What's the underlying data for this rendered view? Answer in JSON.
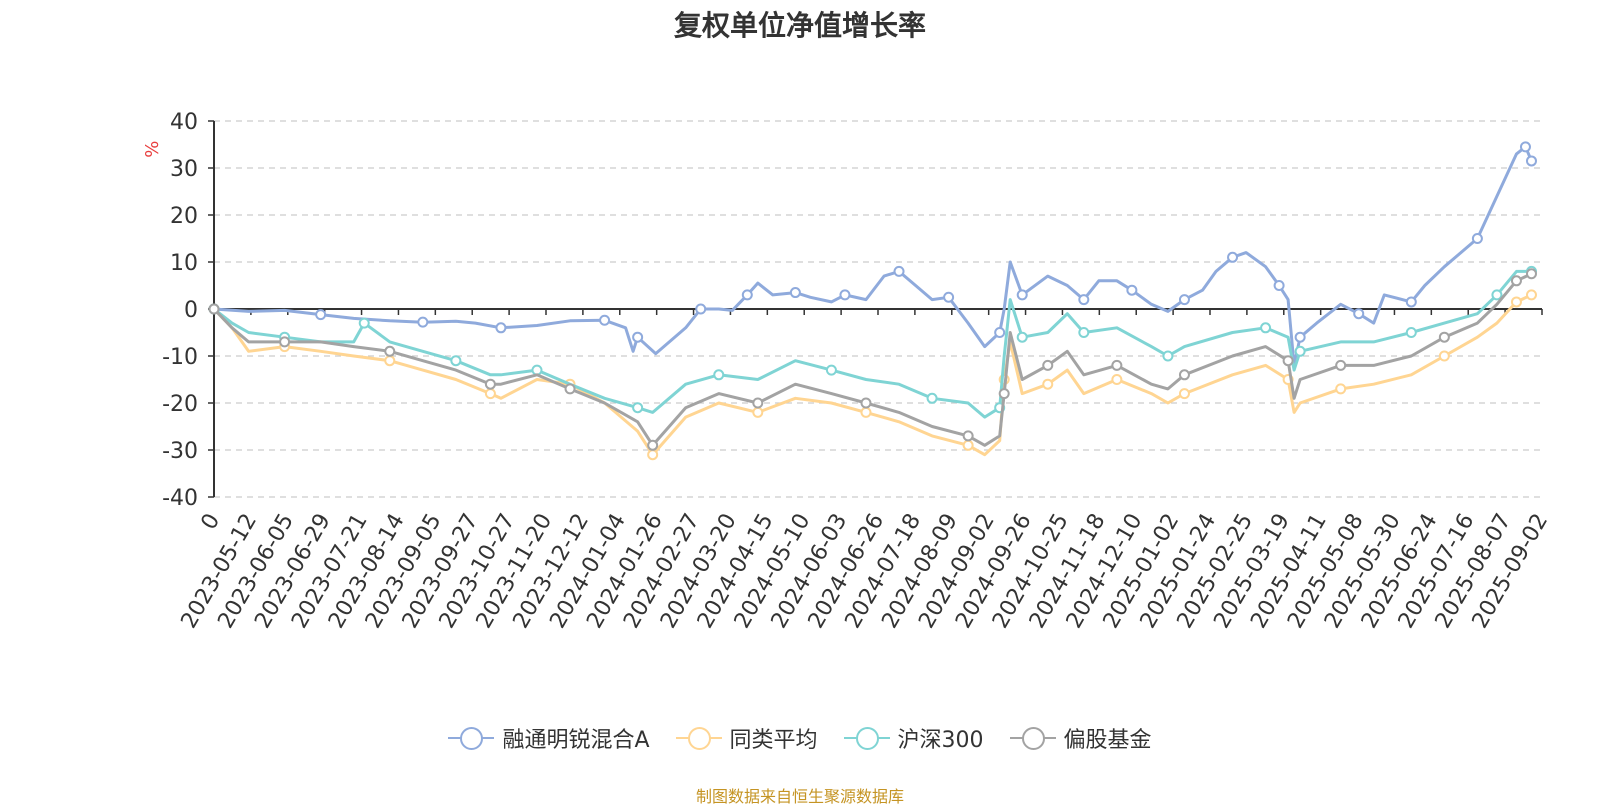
{
  "source_note": "制图数据来自恒生聚源数据库",
  "chart_data": {
    "type": "line",
    "title": "复权单位净值增长率",
    "ylabel": "%",
    "ylim": [
      -40,
      40
    ],
    "yticks": [
      -40,
      -30,
      -20,
      -10,
      0,
      10,
      20,
      30,
      40
    ],
    "x_range": [
      "2023-04-19",
      "2025-09-19"
    ],
    "xtick_labels": [
      "0",
      "2023-05-12",
      "2023-06-05",
      "2023-06-29",
      "2023-07-21",
      "2023-08-14",
      "2023-09-05",
      "2023-09-27",
      "2023-10-27",
      "2023-11-20",
      "2023-12-12",
      "2024-01-04",
      "2024-01-26",
      "2024-02-27",
      "2024-03-20",
      "2024-04-15",
      "2024-05-10",
      "2024-06-03",
      "2024-06-26",
      "2024-07-18",
      "2024-08-09",
      "2024-09-02",
      "2024-09-26",
      "2024-10-25",
      "2024-11-18",
      "2024-12-10",
      "2025-01-02",
      "2025-01-24",
      "2025-02-25",
      "2025-03-19",
      "2025-04-11",
      "2025-05-08",
      "2025-05-30",
      "2025-06-24",
      "2025-07-16",
      "2025-08-07",
      "2025-09-02"
    ],
    "grid": true,
    "legend_position": "bottom",
    "series": [
      {
        "name": "融通明锐混合A",
        "color": "#8faadc",
        "points": [
          [
            "2023-04-19",
            0
          ],
          [
            "2023-05-12",
            -0.5
          ],
          [
            "2023-06-05",
            -0.3
          ],
          [
            "2023-06-29",
            -1.2
          ],
          [
            "2023-07-21",
            -2
          ],
          [
            "2023-08-14",
            -2.5
          ],
          [
            "2023-09-05",
            -2.8
          ],
          [
            "2023-09-27",
            -2.6
          ],
          [
            "2023-10-10",
            -3
          ],
          [
            "2023-10-27",
            -4
          ],
          [
            "2023-11-20",
            -3.5
          ],
          [
            "2023-12-12",
            -2.5
          ],
          [
            "2024-01-04",
            -2.4
          ],
          [
            "2024-01-18",
            -4
          ],
          [
            "2024-01-23",
            -9
          ],
          [
            "2024-01-26",
            -6
          ],
          [
            "2024-02-07",
            -9.5
          ],
          [
            "2024-02-27",
            -4
          ],
          [
            "2024-03-08",
            0
          ],
          [
            "2024-03-20",
            0
          ],
          [
            "2024-03-29",
            -0.3
          ],
          [
            "2024-04-08",
            3
          ],
          [
            "2024-04-15",
            5.5
          ],
          [
            "2024-04-25",
            3
          ],
          [
            "2024-05-10",
            3.5
          ],
          [
            "2024-05-20",
            2.5
          ],
          [
            "2024-06-03",
            1.5
          ],
          [
            "2024-06-12",
            3
          ],
          [
            "2024-06-26",
            2
          ],
          [
            "2024-07-08",
            7
          ],
          [
            "2024-07-18",
            8
          ],
          [
            "2024-07-29",
            5
          ],
          [
            "2024-08-09",
            2
          ],
          [
            "2024-08-20",
            2.5
          ],
          [
            "2024-09-02",
            -3
          ],
          [
            "2024-09-13",
            -8
          ],
          [
            "2024-09-23",
            -5
          ],
          [
            "2024-09-26",
            0
          ],
          [
            "2024-09-30",
            10
          ],
          [
            "2024-10-08",
            3
          ],
          [
            "2024-10-25",
            7
          ],
          [
            "2024-11-07",
            5
          ],
          [
            "2024-11-18",
            2
          ],
          [
            "2024-11-28",
            6
          ],
          [
            "2024-12-10",
            6
          ],
          [
            "2024-12-20",
            4
          ],
          [
            "2025-01-02",
            1
          ],
          [
            "2025-01-13",
            -0.5
          ],
          [
            "2025-01-24",
            2
          ],
          [
            "2025-02-05",
            4
          ],
          [
            "2025-02-14",
            8
          ],
          [
            "2025-02-25",
            11
          ],
          [
            "2025-03-06",
            12
          ],
          [
            "2025-03-19",
            9
          ],
          [
            "2025-03-28",
            5
          ],
          [
            "2025-04-03",
            2
          ],
          [
            "2025-04-07",
            -12
          ],
          [
            "2025-04-11",
            -6
          ],
          [
            "2025-04-22",
            -3
          ],
          [
            "2025-05-08",
            1
          ],
          [
            "2025-05-20",
            -1
          ],
          [
            "2025-05-30",
            -3
          ],
          [
            "2025-06-06",
            3
          ],
          [
            "2025-06-24",
            1.5
          ],
          [
            "2025-07-03",
            5
          ],
          [
            "2025-07-16",
            9
          ],
          [
            "2025-08-07",
            15
          ],
          [
            "2025-08-20",
            24
          ],
          [
            "2025-09-02",
            33
          ],
          [
            "2025-09-08",
            34.5
          ],
          [
            "2025-09-12",
            31.5
          ]
        ]
      },
      {
        "name": "同类平均",
        "color": "#ffd592",
        "points": [
          [
            "2023-04-19",
            0
          ],
          [
            "2023-05-01",
            -4
          ],
          [
            "2023-05-12",
            -9
          ],
          [
            "2023-06-05",
            -8
          ],
          [
            "2023-06-29",
            -9
          ],
          [
            "2023-07-21",
            -10
          ],
          [
            "2023-08-14",
            -11
          ],
          [
            "2023-09-05",
            -13
          ],
          [
            "2023-09-27",
            -15
          ],
          [
            "2023-10-20",
            -18
          ],
          [
            "2023-10-27",
            -19
          ],
          [
            "2023-11-20",
            -15
          ],
          [
            "2023-12-12",
            -16
          ],
          [
            "2024-01-04",
            -20
          ],
          [
            "2024-01-26",
            -26
          ],
          [
            "2024-02-05",
            -31
          ],
          [
            "2024-02-27",
            -23
          ],
          [
            "2024-03-20",
            -20
          ],
          [
            "2024-04-15",
            -22
          ],
          [
            "2024-05-10",
            -19
          ],
          [
            "2024-06-03",
            -20
          ],
          [
            "2024-06-26",
            -22
          ],
          [
            "2024-07-18",
            -24
          ],
          [
            "2024-08-09",
            -27
          ],
          [
            "2024-09-02",
            -29
          ],
          [
            "2024-09-13",
            -31
          ],
          [
            "2024-09-23",
            -28
          ],
          [
            "2024-09-26",
            -15
          ],
          [
            "2024-09-30",
            -7
          ],
          [
            "2024-10-08",
            -18
          ],
          [
            "2024-10-25",
            -16
          ],
          [
            "2024-11-07",
            -13
          ],
          [
            "2024-11-18",
            -18
          ],
          [
            "2024-12-10",
            -15
          ],
          [
            "2025-01-02",
            -18
          ],
          [
            "2025-01-13",
            -20
          ],
          [
            "2025-01-24",
            -18
          ],
          [
            "2025-02-25",
            -14
          ],
          [
            "2025-03-19",
            -12
          ],
          [
            "2025-04-03",
            -15
          ],
          [
            "2025-04-07",
            -22
          ],
          [
            "2025-04-11",
            -20
          ],
          [
            "2025-05-08",
            -17
          ],
          [
            "2025-05-30",
            -16
          ],
          [
            "2025-06-24",
            -14
          ],
          [
            "2025-07-16",
            -10
          ],
          [
            "2025-08-07",
            -6
          ],
          [
            "2025-08-20",
            -3
          ],
          [
            "2025-09-02",
            1.5
          ],
          [
            "2025-09-12",
            3
          ]
        ]
      },
      {
        "name": "沪深300",
        "color": "#7fd4d4",
        "points": [
          [
            "2023-04-19",
            0
          ],
          [
            "2023-05-01",
            -3
          ],
          [
            "2023-05-12",
            -5
          ],
          [
            "2023-06-05",
            -6
          ],
          [
            "2023-06-29",
            -7
          ],
          [
            "2023-07-21",
            -7
          ],
          [
            "2023-07-28",
            -3
          ],
          [
            "2023-08-14",
            -7
          ],
          [
            "2023-09-05",
            -9
          ],
          [
            "2023-09-27",
            -11
          ],
          [
            "2023-10-20",
            -14
          ],
          [
            "2023-10-27",
            -14
          ],
          [
            "2023-11-20",
            -13
          ],
          [
            "2023-12-12",
            -16
          ],
          [
            "2024-01-04",
            -19
          ],
          [
            "2024-01-26",
            -21
          ],
          [
            "2024-02-05",
            -22
          ],
          [
            "2024-02-27",
            -16
          ],
          [
            "2024-03-20",
            -14
          ],
          [
            "2024-04-15",
            -15
          ],
          [
            "2024-05-10",
            -11
          ],
          [
            "2024-06-03",
            -13
          ],
          [
            "2024-06-26",
            -15
          ],
          [
            "2024-07-18",
            -16
          ],
          [
            "2024-08-09",
            -19
          ],
          [
            "2024-09-02",
            -20
          ],
          [
            "2024-09-13",
            -23
          ],
          [
            "2024-09-23",
            -21
          ],
          [
            "2024-09-26",
            -10
          ],
          [
            "2024-09-30",
            2
          ],
          [
            "2024-10-08",
            -6
          ],
          [
            "2024-10-25",
            -5
          ],
          [
            "2024-11-07",
            -1
          ],
          [
            "2024-11-18",
            -5
          ],
          [
            "2024-12-10",
            -4
          ],
          [
            "2025-01-02",
            -8
          ],
          [
            "2025-01-13",
            -10
          ],
          [
            "2025-01-24",
            -8
          ],
          [
            "2025-02-25",
            -5
          ],
          [
            "2025-03-19",
            -4
          ],
          [
            "2025-04-03",
            -6
          ],
          [
            "2025-04-07",
            -13
          ],
          [
            "2025-04-11",
            -9
          ],
          [
            "2025-05-08",
            -7
          ],
          [
            "2025-05-30",
            -7
          ],
          [
            "2025-06-24",
            -5
          ],
          [
            "2025-07-16",
            -3
          ],
          [
            "2025-08-07",
            -1
          ],
          [
            "2025-08-20",
            3
          ],
          [
            "2025-09-02",
            8
          ],
          [
            "2025-09-12",
            8
          ]
        ]
      },
      {
        "name": "偏股基金",
        "color": "#a3a3a3",
        "points": [
          [
            "2023-04-19",
            0
          ],
          [
            "2023-05-01",
            -4
          ],
          [
            "2023-05-12",
            -7
          ],
          [
            "2023-06-05",
            -7
          ],
          [
            "2023-06-29",
            -7
          ],
          [
            "2023-07-21",
            -8
          ],
          [
            "2023-08-14",
            -9
          ],
          [
            "2023-09-05",
            -11
          ],
          [
            "2023-09-27",
            -13
          ],
          [
            "2023-10-20",
            -16
          ],
          [
            "2023-10-27",
            -16
          ],
          [
            "2023-11-20",
            -14
          ],
          [
            "2023-12-12",
            -17
          ],
          [
            "2024-01-04",
            -20
          ],
          [
            "2024-01-26",
            -24
          ],
          [
            "2024-02-05",
            -29
          ],
          [
            "2024-02-27",
            -21
          ],
          [
            "2024-03-20",
            -18
          ],
          [
            "2024-04-15",
            -20
          ],
          [
            "2024-05-10",
            -16
          ],
          [
            "2024-06-03",
            -18
          ],
          [
            "2024-06-26",
            -20
          ],
          [
            "2024-07-18",
            -22
          ],
          [
            "2024-08-09",
            -25
          ],
          [
            "2024-09-02",
            -27
          ],
          [
            "2024-09-13",
            -29
          ],
          [
            "2024-09-23",
            -27
          ],
          [
            "2024-09-26",
            -18
          ],
          [
            "2024-09-30",
            -5
          ],
          [
            "2024-10-08",
            -15
          ],
          [
            "2024-10-25",
            -12
          ],
          [
            "2024-11-07",
            -9
          ],
          [
            "2024-11-18",
            -14
          ],
          [
            "2024-12-10",
            -12
          ],
          [
            "2025-01-02",
            -16
          ],
          [
            "2025-01-13",
            -17
          ],
          [
            "2025-01-24",
            -14
          ],
          [
            "2025-02-25",
            -10
          ],
          [
            "2025-03-19",
            -8
          ],
          [
            "2025-04-03",
            -11
          ],
          [
            "2025-04-07",
            -19
          ],
          [
            "2025-04-11",
            -15
          ],
          [
            "2025-05-08",
            -12
          ],
          [
            "2025-05-30",
            -12
          ],
          [
            "2025-06-24",
            -10
          ],
          [
            "2025-07-16",
            -6
          ],
          [
            "2025-08-07",
            -3
          ],
          [
            "2025-08-20",
            1
          ],
          [
            "2025-09-02",
            6
          ],
          [
            "2025-09-12",
            7.5
          ]
        ]
      }
    ]
  }
}
